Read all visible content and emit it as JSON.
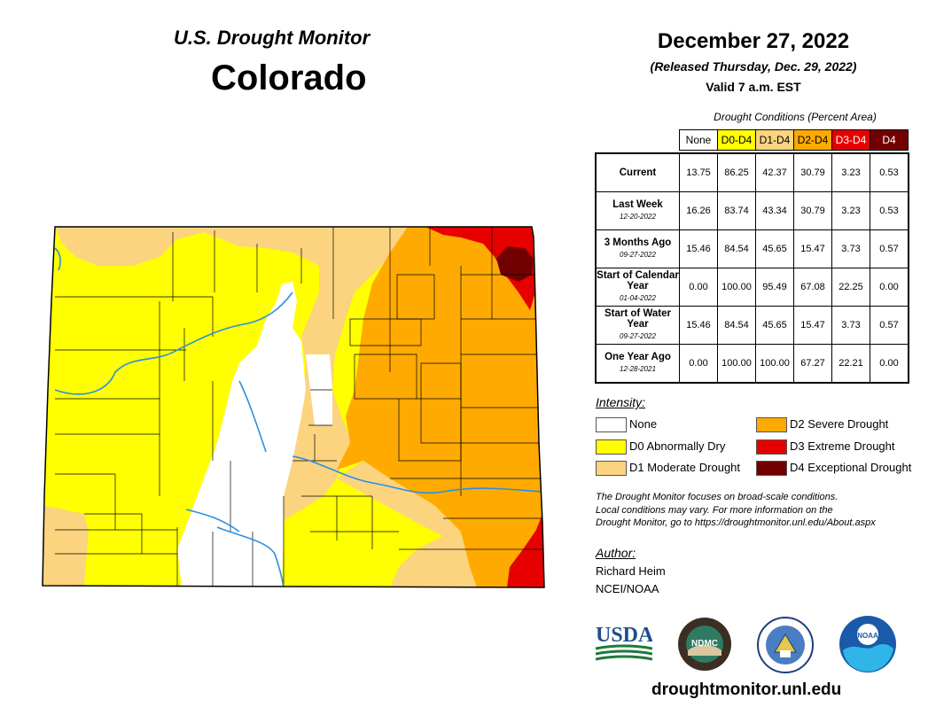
{
  "header": {
    "product": "U.S. Drought Monitor",
    "state": "Colorado",
    "date": "December 27, 2022",
    "released": "(Released Thursday, Dec. 29, 2022)",
    "valid": "Valid 7 a.m. EST"
  },
  "table": {
    "caption": "Drought Conditions (Percent Area)",
    "columns": [
      "None",
      "D0-D4",
      "D1-D4",
      "D2-D4",
      "D3-D4",
      "D4"
    ],
    "rows": [
      {
        "label": "Current",
        "date": "",
        "values": [
          "13.75",
          "86.25",
          "42.37",
          "30.79",
          "3.23",
          "0.53"
        ]
      },
      {
        "label": "Last Week",
        "date": "12-20-2022",
        "values": [
          "16.26",
          "83.74",
          "43.34",
          "30.79",
          "3.23",
          "0.53"
        ]
      },
      {
        "label": "3 Months Ago",
        "date": "09-27-2022",
        "values": [
          "15.46",
          "84.54",
          "45.65",
          "15.47",
          "3.73",
          "0.57"
        ]
      },
      {
        "label": "Start of Calendar Year",
        "date": "01-04-2022",
        "values": [
          "0.00",
          "100.00",
          "95.49",
          "67.08",
          "22.25",
          "0.00"
        ]
      },
      {
        "label": "Start of Water Year",
        "date": "09-27-2022",
        "values": [
          "15.46",
          "84.54",
          "45.65",
          "15.47",
          "3.73",
          "0.57"
        ]
      },
      {
        "label": "One Year Ago",
        "date": "12-28-2021",
        "values": [
          "0.00",
          "100.00",
          "100.00",
          "67.27",
          "22.21",
          "0.00"
        ]
      }
    ]
  },
  "legend": {
    "title": "Intensity:",
    "items": [
      {
        "label": "None",
        "color": "#ffffff"
      },
      {
        "label": "D0 Abnormally Dry",
        "color": "#ffff00"
      },
      {
        "label": "D1 Moderate Drought",
        "color": "#fcd37f"
      },
      {
        "label": "D2 Severe Drought",
        "color": "#ffaa00"
      },
      {
        "label": "D3 Extreme Drought",
        "color": "#e60000"
      },
      {
        "label": "D4 Exceptional Drought",
        "color": "#730000"
      }
    ]
  },
  "note": {
    "line1": "The Drought Monitor focuses on broad-scale conditions.",
    "line2": "Local conditions may vary. For more information on the",
    "line3": "Drought Monitor, go to https://droughtmonitor.unl.edu/About.aspx"
  },
  "author": {
    "title": "Author:",
    "name": "Richard Heim",
    "org": "NCEI/NOAA"
  },
  "logos": {
    "usda": "USDA",
    "ndmc": "NDMC",
    "noaa": "NOAA"
  },
  "footer": {
    "url": "droughtmonitor.unl.edu"
  },
  "colors": {
    "river": "#2a8fe0",
    "county_line": "#000000"
  }
}
